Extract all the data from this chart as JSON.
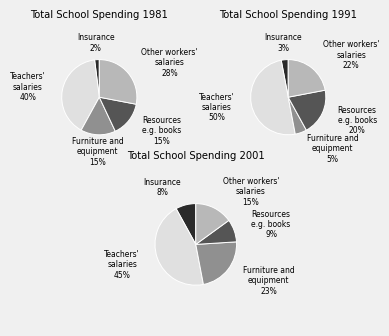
{
  "charts": [
    {
      "title": "Total School Spending 1981",
      "labels": [
        "Insurance\n2%",
        "Teachers'\nsalaries\n40%",
        "Furniture and\nequipment\n15%",
        "Resources\ne.g. books\n15%",
        "Other workers'\nsalaries\n28%"
      ],
      "values": [
        2,
        40,
        15,
        15,
        28
      ],
      "colors": [
        "#2a2a2a",
        "#e0e0e0",
        "#909090",
        "#555555",
        "#b8b8b8"
      ],
      "startangle": 90
    },
    {
      "title": "Total School Spending 1991",
      "labels": [
        "Insurance\n3%",
        "Teachers'\nsalaries\n50%",
        "Furniture and\nequipment\n5%",
        "Resources\ne.g. books\n20%",
        "Other workers'\nsalaries\n22%"
      ],
      "values": [
        3,
        50,
        5,
        20,
        22
      ],
      "colors": [
        "#2a2a2a",
        "#e0e0e0",
        "#909090",
        "#555555",
        "#b8b8b8"
      ],
      "startangle": 90
    },
    {
      "title": "Total School Spending 2001",
      "labels": [
        "Insurance\n8%",
        "Teachers'\nsalaries\n45%",
        "Furniture and\nequipment\n23%",
        "Resources\ne.g. books\n9%",
        "Other workers'\nsalaries\n15%"
      ],
      "values": [
        8,
        45,
        23,
        9,
        15
      ],
      "colors": [
        "#2a2a2a",
        "#e0e0e0",
        "#909090",
        "#555555",
        "#b8b8b8"
      ],
      "startangle": 90
    }
  ],
  "label_fontsize": 5.5,
  "title_fontsize": 7.2,
  "background_color": "#f0f0f0"
}
